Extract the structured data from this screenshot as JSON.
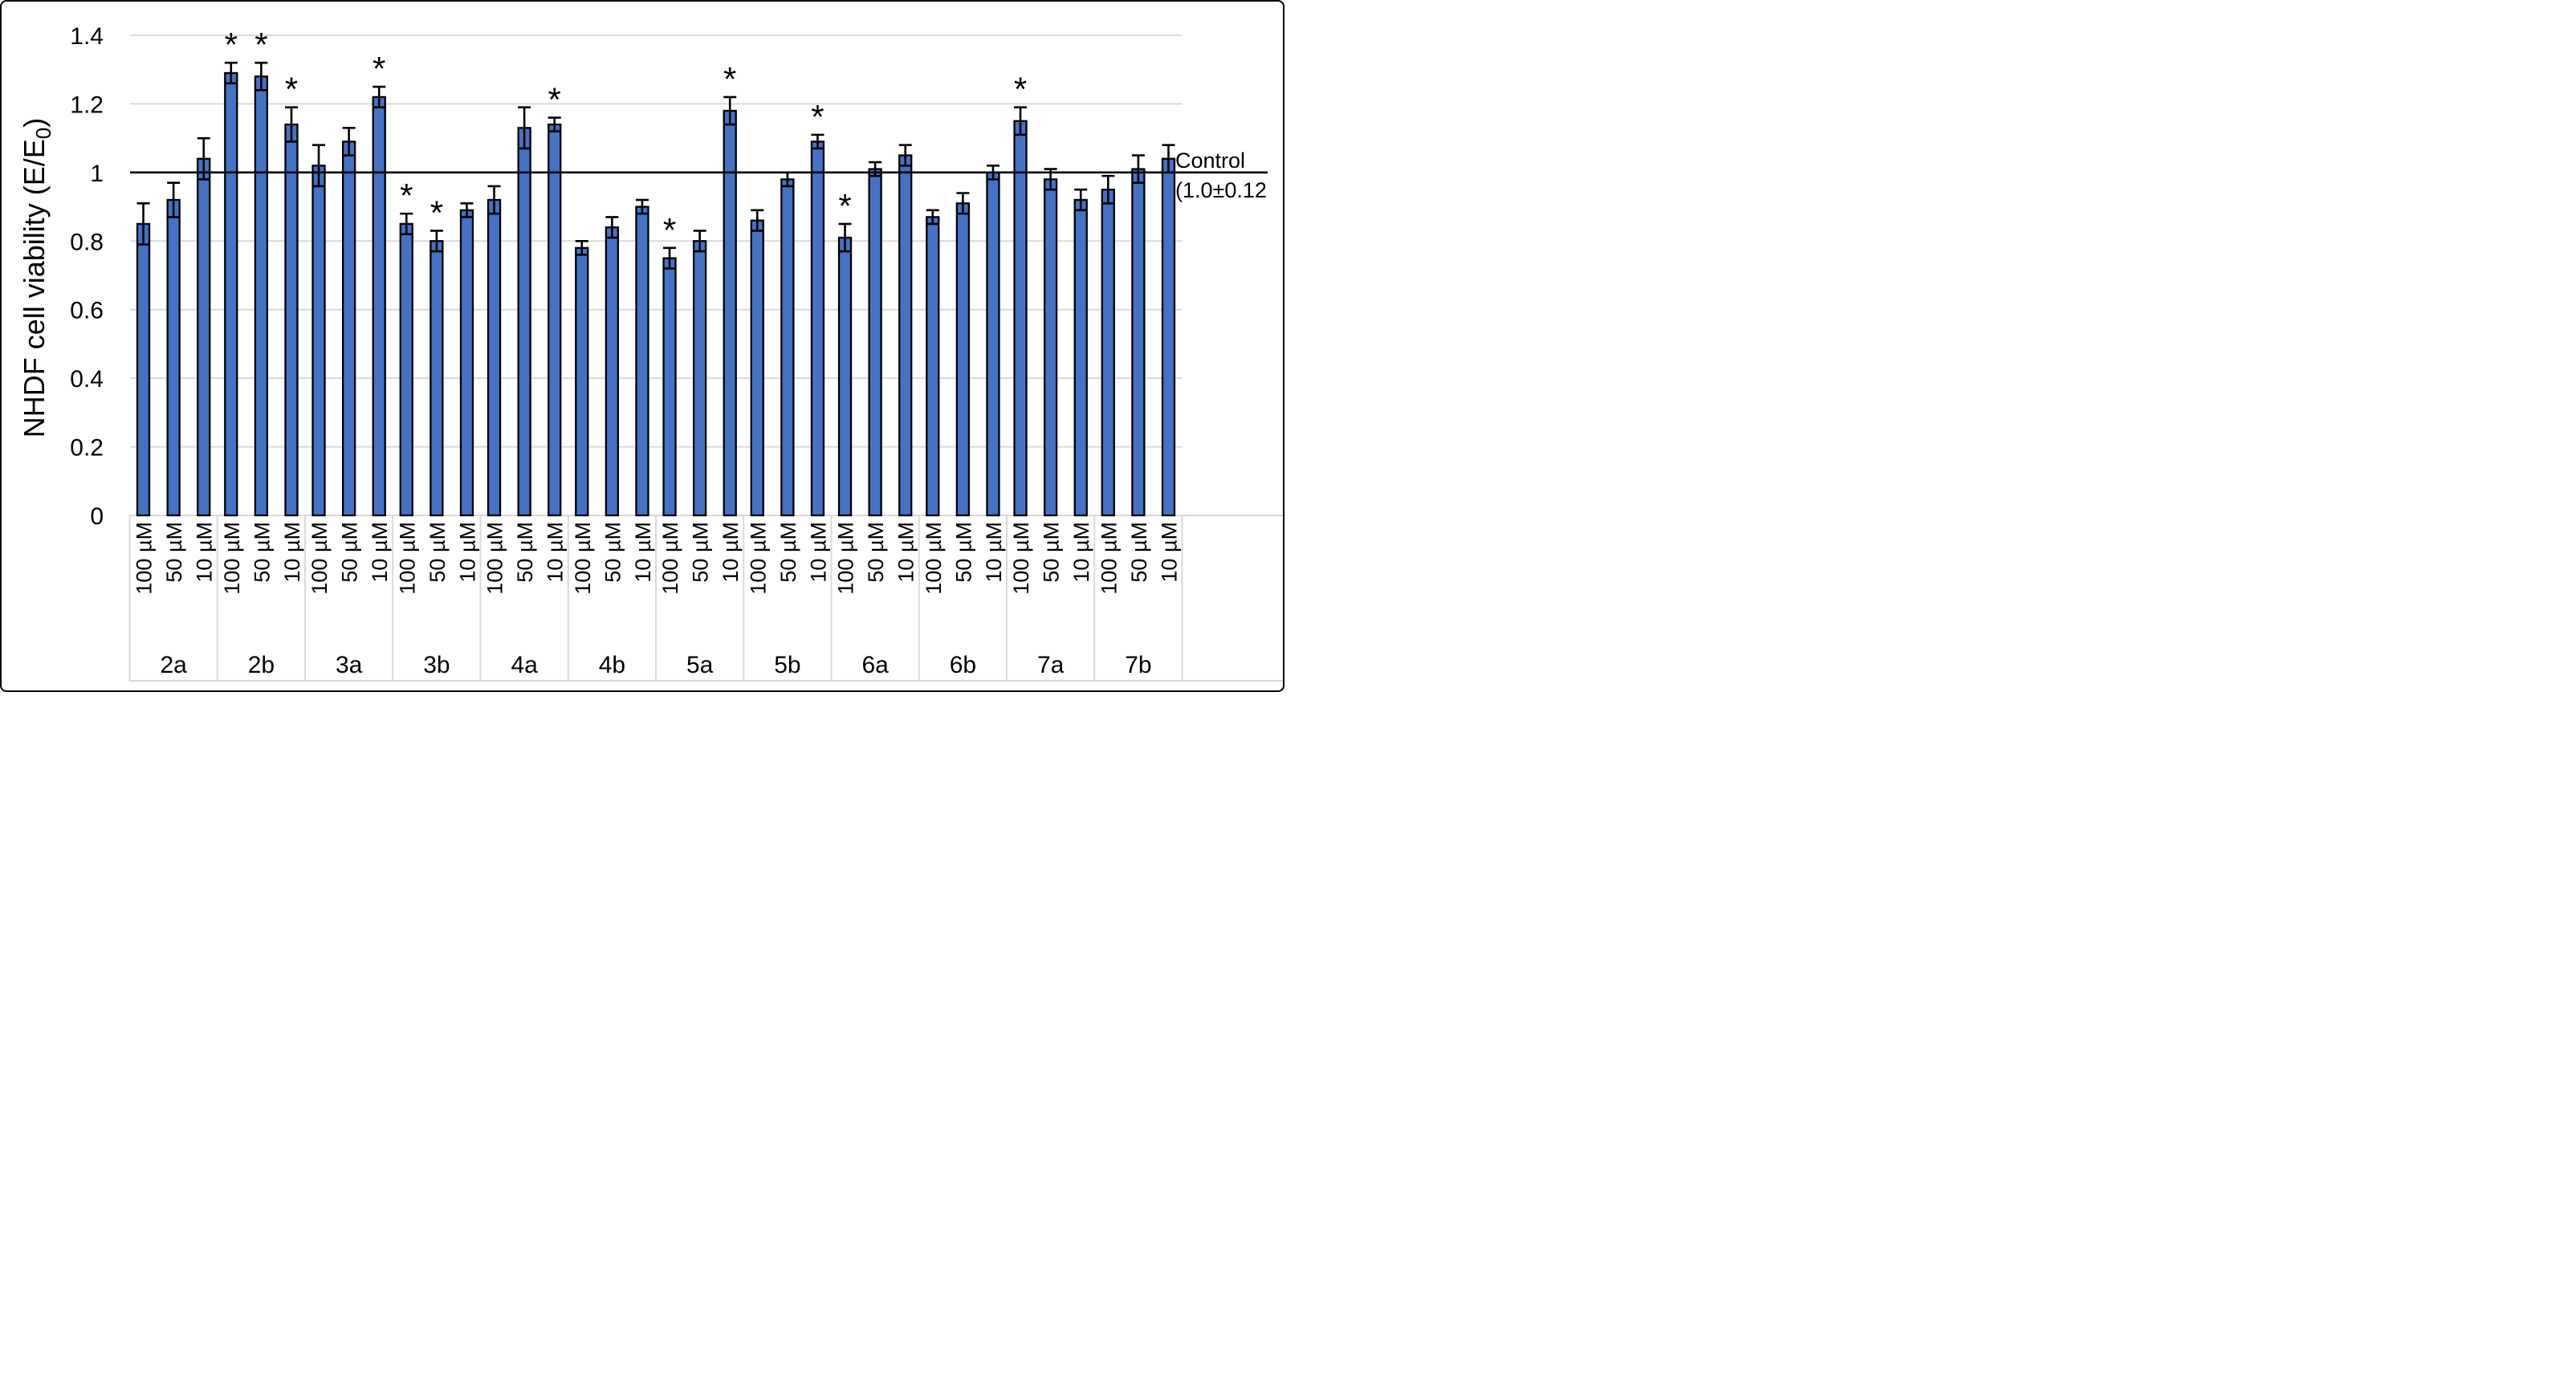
{
  "figure": {
    "ylabel": {
      "pre": "NHDF cell viability (E/E",
      "sub": "0",
      "post": ")"
    },
    "control_annotation": {
      "line1": "Control",
      "line2": "(1.0±0.12"
    },
    "significance_marker": "*"
  },
  "chart_data": {
    "type": "bar",
    "title": "",
    "xlabel": "",
    "ylabel": "NHDF cell viability (E/E0)",
    "ylim": [
      0,
      1.4
    ],
    "yticks": [
      "0",
      "0.2",
      "0.4",
      "0.6",
      "0.8",
      "1",
      "1.2",
      "1.4"
    ],
    "grid": true,
    "gridline_color": "#D9D9D9",
    "bar_fill_color": "#4472C4",
    "bar_border_color": "#000000",
    "error_bar_color": "#000000",
    "control_line": {
      "value": 1.0,
      "color": "#000000",
      "annotation": "Control (1.0±0.12"
    },
    "significance_marker": "*",
    "concentrations": [
      "100 µM",
      "50 µM",
      "10 µM"
    ],
    "groups": [
      {
        "label": "2a",
        "values": [
          0.85,
          0.92,
          1.04
        ],
        "errors": [
          0.06,
          0.05,
          0.06
        ],
        "significant": [
          false,
          false,
          false
        ]
      },
      {
        "label": "2b",
        "values": [
          1.29,
          1.28,
          1.14
        ],
        "errors": [
          0.03,
          0.04,
          0.05
        ],
        "significant": [
          true,
          true,
          true
        ]
      },
      {
        "label": "3a",
        "values": [
          1.02,
          1.09,
          1.22
        ],
        "errors": [
          0.06,
          0.04,
          0.03
        ],
        "significant": [
          false,
          false,
          true
        ]
      },
      {
        "label": "3b",
        "values": [
          0.85,
          0.8,
          0.89
        ],
        "errors": [
          0.03,
          0.03,
          0.02
        ],
        "significant": [
          true,
          true,
          false
        ]
      },
      {
        "label": "4a",
        "values": [
          0.92,
          1.13,
          1.14
        ],
        "errors": [
          0.04,
          0.06,
          0.02
        ],
        "significant": [
          false,
          false,
          true
        ]
      },
      {
        "label": "4b",
        "values": [
          0.78,
          0.84,
          0.9
        ],
        "errors": [
          0.02,
          0.03,
          0.02
        ],
        "significant": [
          false,
          false,
          false
        ]
      },
      {
        "label": "5a",
        "values": [
          0.75,
          0.8,
          1.18
        ],
        "errors": [
          0.03,
          0.03,
          0.04
        ],
        "significant": [
          true,
          false,
          true
        ]
      },
      {
        "label": "5b",
        "values": [
          0.86,
          0.98,
          1.09
        ],
        "errors": [
          0.03,
          0.02,
          0.02
        ],
        "significant": [
          false,
          false,
          true
        ]
      },
      {
        "label": "6a",
        "values": [
          0.81,
          1.01,
          1.05
        ],
        "errors": [
          0.04,
          0.02,
          0.03
        ],
        "significant": [
          true,
          false,
          false
        ]
      },
      {
        "label": "6b",
        "values": [
          0.87,
          0.91,
          1.0
        ],
        "errors": [
          0.02,
          0.03,
          0.02
        ],
        "significant": [
          false,
          false,
          false
        ]
      },
      {
        "label": "7a",
        "values": [
          1.15,
          0.98,
          0.92
        ],
        "errors": [
          0.04,
          0.03,
          0.03
        ],
        "significant": [
          true,
          false,
          false
        ]
      },
      {
        "label": "7b",
        "values": [
          0.95,
          1.01,
          1.04
        ],
        "errors": [
          0.04,
          0.04,
          0.04
        ],
        "significant": [
          false,
          false,
          false
        ]
      }
    ]
  }
}
